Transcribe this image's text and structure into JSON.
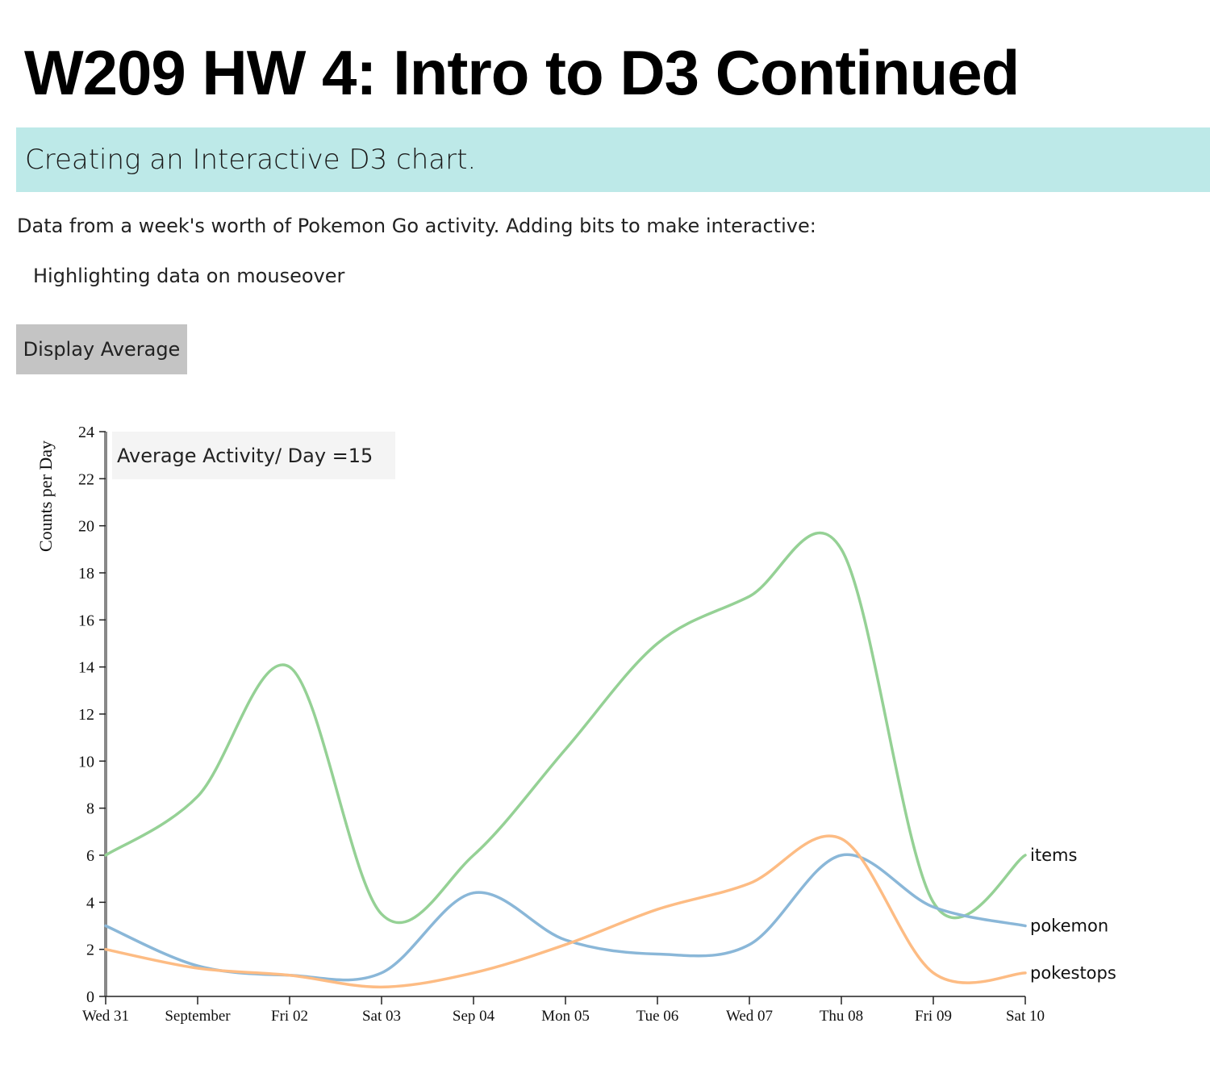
{
  "header": {
    "title": "W209 HW 4: Intro to D3 Continued",
    "subtitle": "Creating an Interactive D3 chart."
  },
  "intro": {
    "description": "Data from a week's worth of Pokemon Go activity. Adding bits to make interactive:",
    "feature": "Highlighting data on mouseover"
  },
  "controls": {
    "average_button_label": "Display Average"
  },
  "average_box": {
    "label": "Average Activity/ Day =15",
    "background": "#f4f4f4"
  },
  "chart_data": {
    "type": "line",
    "title": "",
    "xlabel": "",
    "ylabel": "Counts per Day",
    "ylim": [
      0,
      24
    ],
    "yticks": [
      0,
      2,
      4,
      6,
      8,
      10,
      12,
      14,
      16,
      18,
      20,
      22,
      24
    ],
    "xticks": [
      "Wed 31",
      "September",
      "Fri 02",
      "Sat 03",
      "Sep 04",
      "Mon 05",
      "Tue 06",
      "Wed 07",
      "Thu 08",
      "Fri 09",
      "Sat 10"
    ],
    "x": [
      "2016-08-31",
      "2016-09-01",
      "2016-09-02",
      "2016-09-03",
      "2016-09-04",
      "2016-09-05",
      "2016-09-06",
      "2016-09-07",
      "2016-09-08",
      "2016-09-09",
      "2016-09-10"
    ],
    "curve": "smooth",
    "grid": false,
    "series": [
      {
        "name": "items",
        "color": "#95d195",
        "values": [
          6,
          8.5,
          14,
          3.5,
          6,
          10.5,
          15,
          17,
          19,
          4,
          6
        ]
      },
      {
        "name": "pokemon",
        "color": "#8ab7d8",
        "values": [
          3,
          1.3,
          0.9,
          1,
          4.4,
          2.4,
          1.8,
          2.2,
          6,
          3.8,
          3
        ]
      },
      {
        "name": "pokestops",
        "color": "#fdbc84",
        "values": [
          2,
          1.2,
          0.9,
          0.4,
          1,
          2.2,
          3.7,
          4.8,
          6.7,
          1,
          1
        ]
      }
    ]
  }
}
